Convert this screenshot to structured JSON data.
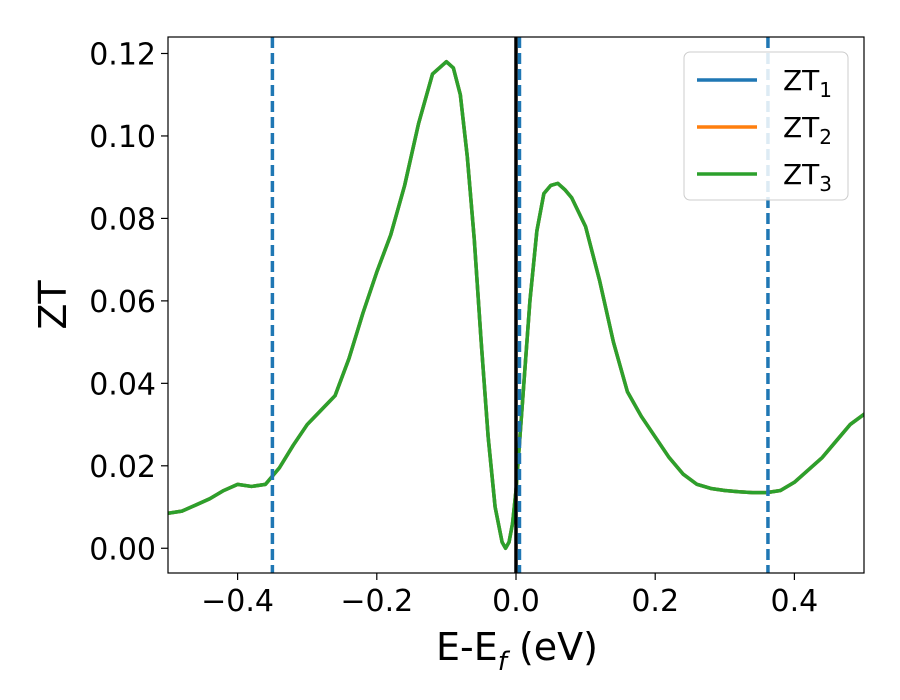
{
  "chart_data": {
    "type": "line",
    "xlabel_main": "E-E",
    "xlabel_sub": "f",
    "xlabel_unit": " (eV)",
    "ylabel": "ZT",
    "xlim": [
      -0.5,
      0.5
    ],
    "ylim": [
      -0.006,
      0.124
    ],
    "x_ticks": [
      -0.4,
      -0.2,
      0.0,
      0.2,
      0.4
    ],
    "x_tick_labels": [
      "−0.4",
      "−0.2",
      "0.0",
      "0.2",
      "0.4"
    ],
    "y_ticks": [
      0.0,
      0.02,
      0.04,
      0.06,
      0.08,
      0.1,
      0.12
    ],
    "y_tick_labels": [
      "0.00",
      "0.02",
      "0.04",
      "0.06",
      "0.08",
      "0.10",
      "0.12"
    ],
    "grid": false,
    "legend_position": "top-right",
    "series": [
      {
        "name": "ZT",
        "sub": "1",
        "color": "#1f77b4"
      },
      {
        "name": "ZT",
        "sub": "2",
        "color": "#ff7f0e"
      },
      {
        "name": "ZT",
        "sub": "3",
        "color": "#2ca02c"
      }
    ],
    "curve": {
      "x": [
        -0.5,
        -0.48,
        -0.46,
        -0.44,
        -0.42,
        -0.4,
        -0.38,
        -0.36,
        -0.34,
        -0.32,
        -0.3,
        -0.28,
        -0.26,
        -0.24,
        -0.22,
        -0.2,
        -0.18,
        -0.16,
        -0.14,
        -0.12,
        -0.1,
        -0.09,
        -0.08,
        -0.07,
        -0.06,
        -0.05,
        -0.04,
        -0.03,
        -0.02,
        -0.015,
        -0.01,
        -0.005,
        0.0,
        0.01,
        0.02,
        0.03,
        0.04,
        0.05,
        0.06,
        0.07,
        0.08,
        0.1,
        0.12,
        0.14,
        0.16,
        0.18,
        0.2,
        0.22,
        0.24,
        0.26,
        0.28,
        0.3,
        0.32,
        0.34,
        0.36,
        0.38,
        0.4,
        0.42,
        0.44,
        0.46,
        0.48,
        0.5
      ],
      "y": [
        0.0085,
        0.009,
        0.0105,
        0.012,
        0.014,
        0.0155,
        0.015,
        0.0155,
        0.0195,
        0.025,
        0.03,
        0.0335,
        0.037,
        0.046,
        0.057,
        0.067,
        0.076,
        0.088,
        0.103,
        0.115,
        0.118,
        0.1165,
        0.11,
        0.095,
        0.075,
        0.05,
        0.027,
        0.01,
        0.0015,
        0.0,
        0.0015,
        0.006,
        0.014,
        0.037,
        0.06,
        0.077,
        0.086,
        0.088,
        0.0885,
        0.087,
        0.085,
        0.078,
        0.065,
        0.05,
        0.038,
        0.032,
        0.027,
        0.022,
        0.018,
        0.0155,
        0.0145,
        0.014,
        0.0137,
        0.0135,
        0.0135,
        0.014,
        0.016,
        0.019,
        0.022,
        0.026,
        0.03,
        0.0325
      ]
    },
    "vlines_dashed": [
      -0.35,
      0.005,
      0.362
    ],
    "vline_solid": 0.0
  }
}
